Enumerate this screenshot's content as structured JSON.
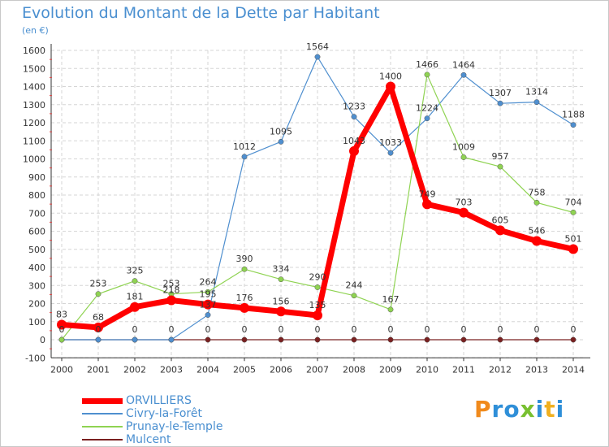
{
  "chart_data": {
    "type": "line",
    "title": "Evolution du Montant de la Dette par Habitant",
    "subtitle": "(en €)",
    "xlabel": "",
    "ylabel": "",
    "x": [
      "2000",
      "2001",
      "2002",
      "2003",
      "2004",
      "2005",
      "2006",
      "2007",
      "2008",
      "2009",
      "2010",
      "2011",
      "2012",
      "2013",
      "2014"
    ],
    "ylim": [
      -100,
      1600
    ],
    "yticks": [
      -100,
      0,
      100,
      200,
      300,
      400,
      500,
      600,
      700,
      800,
      900,
      1000,
      1100,
      1200,
      1300,
      1400,
      1500,
      1600
    ],
    "legend_position": "bottom-left",
    "series": [
      {
        "name": "Mulcent",
        "color": "#7a2020",
        "values": [
          0,
          0,
          0,
          0,
          0,
          0,
          0,
          0,
          0,
          0,
          0,
          0,
          0,
          0,
          0
        ],
        "labels": [
          "0",
          "0",
          "0",
          "0",
          "0",
          "0",
          "0",
          "0",
          "0",
          "0",
          "0",
          "0",
          "0",
          "0",
          "0"
        ]
      },
      {
        "name": "Civry-la-Forêt",
        "color": "#4f8fcf",
        "values": [
          0,
          0,
          0,
          0,
          137,
          1012,
          1095,
          1564,
          1233,
          1033,
          1224,
          1464,
          1307,
          1314,
          1188
        ],
        "labels": [
          "",
          "",
          "",
          "",
          "137",
          "1012",
          "1095",
          "1564",
          "1233",
          "1033",
          "1224",
          "1464",
          "1307",
          "1314",
          "1188"
        ]
      },
      {
        "name": "Prunay-le-Temple",
        "color": "#8fd352",
        "values": [
          0,
          253,
          325,
          253,
          264,
          390,
          334,
          290,
          244,
          167,
          1466,
          1009,
          957,
          758,
          704
        ],
        "labels": [
          "",
          "253",
          "325",
          "253",
          "264",
          "390",
          "334",
          "290",
          "244",
          "167",
          "1466",
          "1009",
          "957",
          "758",
          "704"
        ]
      },
      {
        "name": "ORVILLIERS",
        "color": "#ff0000",
        "values": [
          83,
          68,
          181,
          218,
          195,
          176,
          156,
          135,
          1043,
          1400,
          749,
          703,
          605,
          546,
          501
        ],
        "labels": [
          "83",
          "68",
          "181",
          "218",
          "195",
          "176",
          "156",
          "135",
          "1043",
          "1400",
          "749",
          "703",
          "605",
          "546",
          "501"
        ]
      }
    ],
    "legend": [
      "ORVILLIERS",
      "Civry-la-Forêt",
      "Prunay-le-Temple",
      "Mulcent"
    ]
  },
  "legend_colors": {
    "ORVILLIERS": "#ff0000",
    "Civry-la-Forêt": "#4f8fcf",
    "Prunay-le-Temple": "#8fd352",
    "Mulcent": "#7a2020"
  },
  "branding": {
    "logo_letters": [
      {
        "ch": "P",
        "color": "#f08a1c"
      },
      {
        "ch": "r",
        "color": "#2f8fd8"
      },
      {
        "ch": "o",
        "color": "#2f8fd8"
      },
      {
        "ch": "x",
        "color": "#78c030"
      },
      {
        "ch": "i",
        "color": "#2f8fd8"
      },
      {
        "ch": "t",
        "color": "#f0b020"
      },
      {
        "ch": "i",
        "color": "#2f8fd8"
      }
    ]
  }
}
